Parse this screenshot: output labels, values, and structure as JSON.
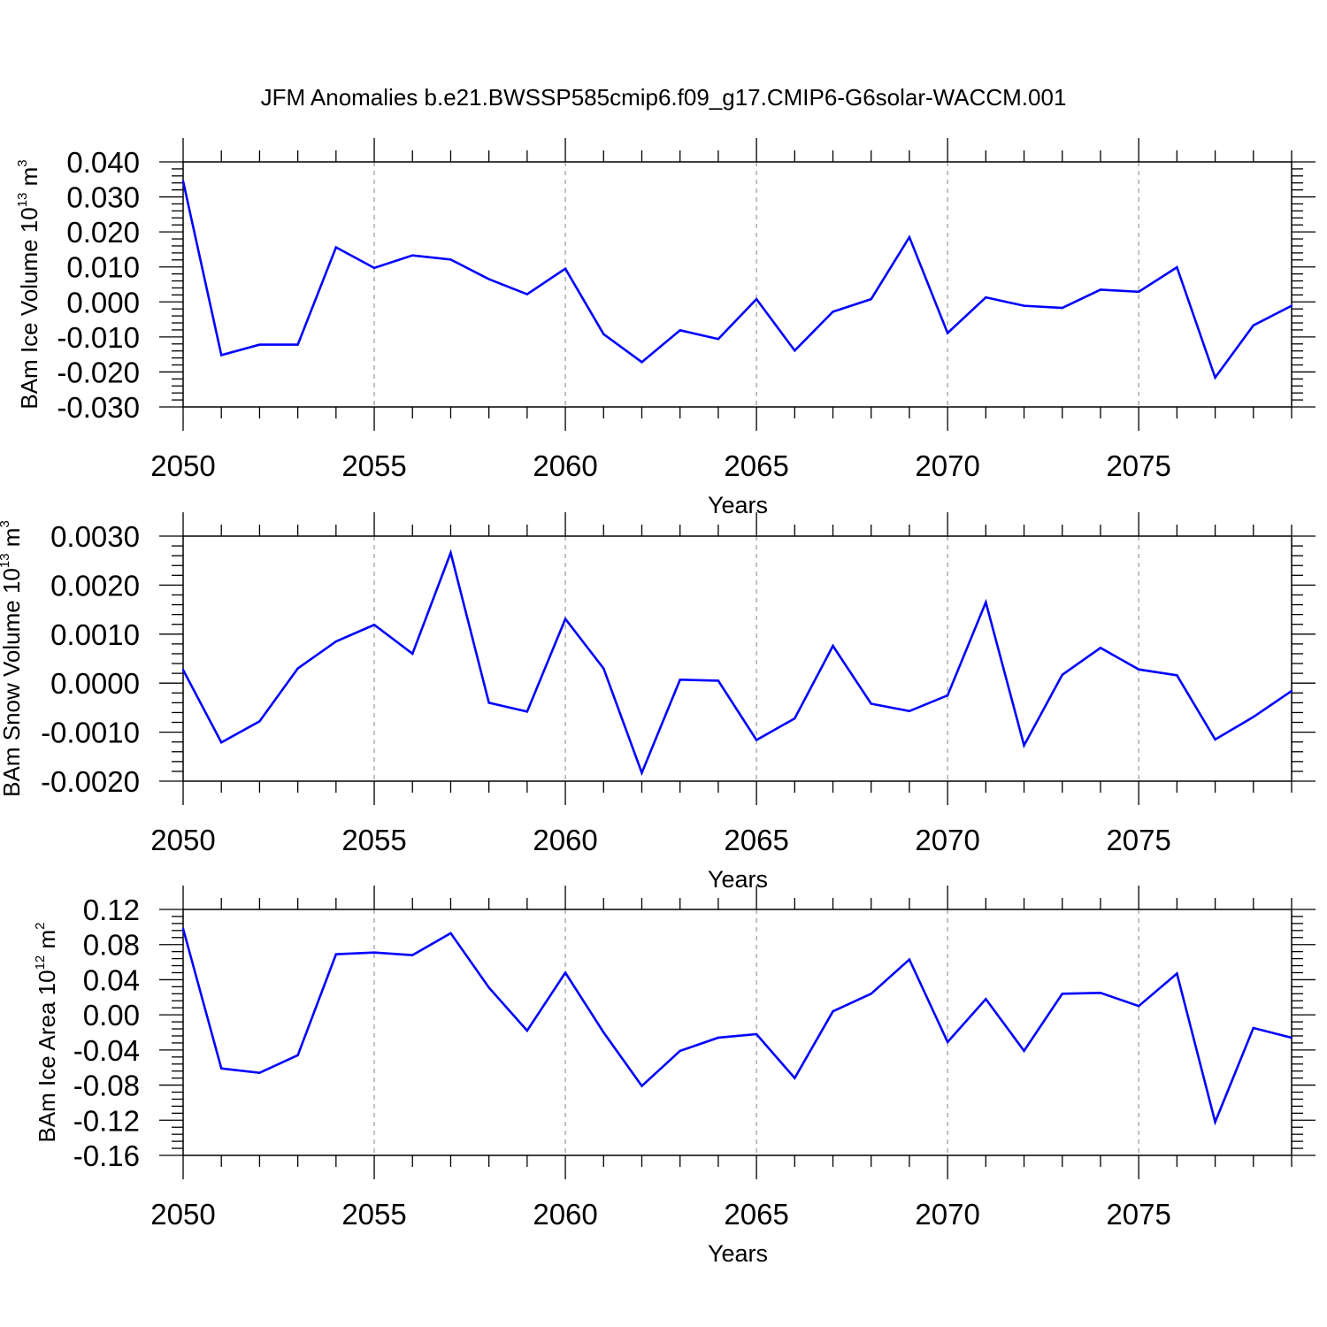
{
  "title": "JFM Anomalies b.e21.BWSSP585cmip6.f09_g17.CMIP6-G6solar-WACCM.001",
  "colors": {
    "line": "#0000ff",
    "axis": "#000000",
    "grid": "#999999"
  },
  "chart_data": [
    {
      "type": "line",
      "title": "JFM Anomalies b.e21.BWSSP585cmip6.f09_g17.CMIP6-G6solar-WACCM.001",
      "xlabel": "Years",
      "ylabel": {
        "main": "BAm Ice Volume 10",
        "exp": "13",
        "unit": " m",
        "unit_exp": "3"
      },
      "xlim": [
        2050,
        2079
      ],
      "ylim": [
        -0.03,
        0.04
      ],
      "x_ticks": [
        "2050",
        "2055",
        "2060",
        "2065",
        "2070",
        "2075"
      ],
      "y_ticks": [
        "-0.030",
        "-0.020",
        "-0.010",
        "0.000",
        "0.010",
        "0.020",
        "0.030",
        "0.040"
      ],
      "grid": "vertical dashed at major x ticks",
      "x": [
        2050,
        2051,
        2052,
        2053,
        2054,
        2055,
        2056,
        2057,
        2058,
        2059,
        2060,
        2061,
        2062,
        2063,
        2064,
        2065,
        2066,
        2067,
        2068,
        2069,
        2070,
        2071,
        2072,
        2073,
        2074,
        2075,
        2076,
        2077,
        2078,
        2079
      ],
      "values": [
        0.0345,
        -0.0152,
        -0.0122,
        -0.0122,
        0.0156,
        0.0097,
        0.0133,
        0.0121,
        0.0065,
        0.0022,
        0.0095,
        -0.0092,
        -0.0172,
        -0.0081,
        -0.0106,
        0.0008,
        -0.0139,
        -0.0028,
        0.0008,
        0.0185,
        -0.0089,
        0.0013,
        -0.0011,
        -0.0017,
        0.0035,
        0.0029,
        0.0099,
        -0.0216,
        -0.0067,
        -0.0011
      ]
    },
    {
      "type": "line",
      "xlabel": "Years",
      "ylabel": {
        "main": "BAm Snow Volume 10",
        "exp": "13",
        "unit": " m",
        "unit_exp": "3"
      },
      "xlim": [
        2050,
        2079
      ],
      "ylim": [
        -0.002,
        0.003
      ],
      "x_ticks": [
        "2050",
        "2055",
        "2060",
        "2065",
        "2070",
        "2075"
      ],
      "y_ticks": [
        "-0.0020",
        "-0.0010",
        "0.0000",
        "0.0010",
        "0.0020",
        "0.0030"
      ],
      "grid": "vertical dashed at major x ticks",
      "x": [
        2050,
        2051,
        2052,
        2053,
        2054,
        2055,
        2056,
        2057,
        2058,
        2059,
        2060,
        2061,
        2062,
        2063,
        2064,
        2065,
        2066,
        2067,
        2068,
        2069,
        2070,
        2071,
        2072,
        2073,
        2074,
        2075,
        2076,
        2077,
        2078,
        2079
      ],
      "values": [
        0.00027,
        -0.00121,
        -0.00078,
        0.0003,
        0.00085,
        0.00119,
        0.0006,
        0.00266,
        -0.0004,
        -0.00058,
        0.00131,
        0.0003,
        -0.00183,
        7e-05,
        5e-05,
        -0.00116,
        -0.00072,
        0.00076,
        -0.00042,
        -0.00057,
        -0.00025,
        0.00165,
        -0.00127,
        0.00017,
        0.00072,
        0.00028,
        0.00016,
        -0.00115,
        -0.00069,
        -0.00016
      ]
    },
    {
      "type": "line",
      "xlabel": "Years",
      "ylabel": {
        "main": "BAm Ice Area 10",
        "exp": "12",
        "unit": " m",
        "unit_exp": "2"
      },
      "xlim": [
        2050,
        2079
      ],
      "ylim": [
        -0.16,
        0.12
      ],
      "x_ticks": [
        "2050",
        "2055",
        "2060",
        "2065",
        "2070",
        "2075"
      ],
      "y_ticks": [
        "-0.16",
        "-0.12",
        "-0.08",
        "-0.04",
        "0.00",
        "0.04",
        "0.08",
        "0.12"
      ],
      "grid": "vertical dashed at major x ticks",
      "x": [
        2050,
        2051,
        2052,
        2053,
        2054,
        2055,
        2056,
        2057,
        2058,
        2059,
        2060,
        2061,
        2062,
        2063,
        2064,
        2065,
        2066,
        2067,
        2068,
        2069,
        2070,
        2071,
        2072,
        2073,
        2074,
        2075,
        2076,
        2077,
        2078,
        2079
      ],
      "values": [
        0.098,
        -0.061,
        -0.066,
        -0.046,
        0.069,
        0.071,
        0.068,
        0.093,
        0.031,
        -0.018,
        0.048,
        -0.02,
        -0.081,
        -0.041,
        -0.026,
        -0.022,
        -0.072,
        0.004,
        0.024,
        0.063,
        -0.031,
        0.018,
        -0.041,
        0.024,
        0.025,
        0.01,
        0.047,
        -0.122,
        -0.015,
        -0.026
      ]
    }
  ]
}
